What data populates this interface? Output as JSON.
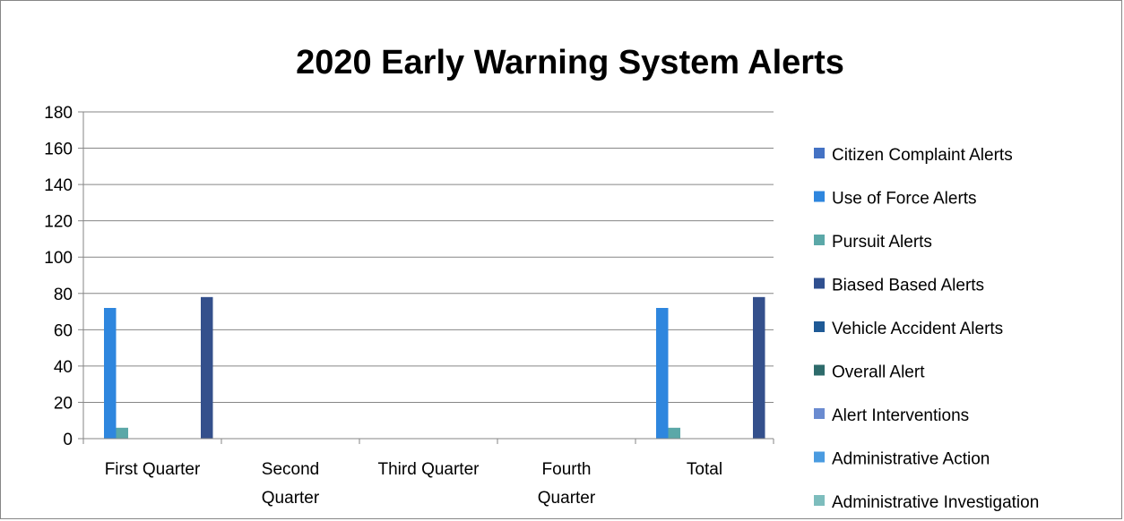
{
  "chart_data": {
    "type": "bar",
    "title": "2020 Early Warning System Alerts",
    "xlabel": "",
    "ylabel": "",
    "ylim": [
      0,
      180
    ],
    "yticks": [
      "0",
      "20",
      "40",
      "60",
      "80",
      "100",
      "120",
      "140",
      "160",
      "180"
    ],
    "grid": true,
    "legend_position": "right",
    "categories": [
      [
        "First Quarter"
      ],
      [
        "Second",
        "Quarter"
      ],
      [
        "Third Quarter"
      ],
      [
        "Fourth",
        "Quarter"
      ],
      [
        "Total"
      ]
    ],
    "series": [
      {
        "name": "Citizen Complaint Alerts",
        "color": "#4472C4",
        "values": [
          0,
          0,
          0,
          0,
          0
        ]
      },
      {
        "name": "Use of Force Alerts",
        "color": "#2E86DE",
        "values": [
          72,
          0,
          0,
          0,
          72
        ]
      },
      {
        "name": "Pursuit Alerts",
        "color": "#5BA8A8",
        "values": [
          6,
          0,
          0,
          0,
          6
        ]
      },
      {
        "name": "Biased Based Alerts",
        "color": "#2F4F8F",
        "values": [
          0,
          0,
          0,
          0,
          0
        ]
      },
      {
        "name": "Vehicle Accident Alerts",
        "color": "#1F5A96",
        "values": [
          0,
          0,
          0,
          0,
          0
        ]
      },
      {
        "name": "Overall Alert",
        "color": "#2E6B6B",
        "values": [
          0,
          0,
          0,
          0,
          0
        ]
      },
      {
        "name": "Alert Interventions",
        "color": "#6A8BD0",
        "values": [
          0,
          0,
          0,
          0,
          0
        ]
      },
      {
        "name": "Administrative Action",
        "color": "#4A9BE0",
        "values": [
          0,
          0,
          0,
          0,
          0
        ]
      },
      {
        "name": "Administrative Investigation",
        "color": "#7DBDBD",
        "values": [
          0,
          0,
          0,
          0,
          0
        ]
      },
      {
        "name": "",
        "color": "#34508C",
        "values": [
          78,
          0,
          0,
          0,
          78
        ],
        "in_legend": false
      }
    ],
    "axis_color": "#868686",
    "grid_color": "#868686"
  }
}
